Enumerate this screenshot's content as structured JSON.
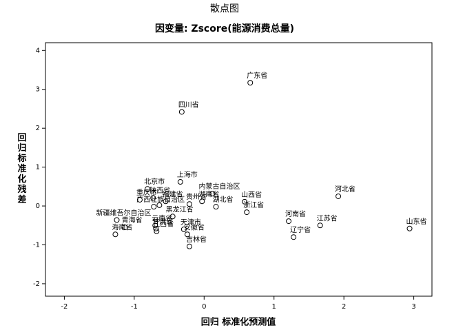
{
  "chart_data": {
    "type": "scatter",
    "title": "散点图",
    "subtitle": "因变量: Zscore(能源消费总量)",
    "x_label": "回归 标准化预测值",
    "y_label": "回归标准化残差",
    "x": [
      0.66,
      -0.32,
      -0.34,
      0.12,
      -0.81,
      -0.73,
      -0.92,
      -0.55,
      -0.03,
      0.58,
      1.92,
      -0.72,
      -0.64,
      0.17,
      0.61,
      -0.45,
      -0.7,
      -0.69,
      -0.68,
      -0.21,
      -0.29,
      -0.24,
      -0.21,
      -1.25,
      -1.13,
      -1.27,
      1.21,
      1.66,
      1.28,
      2.94
    ],
    "values": [
      3.17,
      2.42,
      0.62,
      0.32,
      0.44,
      0.21,
      0.16,
      0.12,
      0.12,
      0.11,
      0.25,
      -0.02,
      0.02,
      -0.02,
      -0.16,
      -0.27,
      -0.5,
      -0.58,
      -0.65,
      0.05,
      -0.6,
      -0.73,
      -1.04,
      -0.36,
      -0.55,
      -0.73,
      -0.39,
      -0.5,
      -0.8,
      -0.58
    ],
    "point_labels": [
      "广东省",
      "四川省",
      "上海市",
      "内蒙古自治区",
      "北京市",
      "陕西省",
      "重庆市",
      "福建省",
      "湖南省",
      "山西省",
      "河北省",
      "广西壮族自治区",
      null,
      "湖北省",
      "浙江省",
      "黑龙江省",
      "云南省",
      "甘肃省",
      "江西省",
      "贵州省",
      "天津市",
      "安徽省",
      "吉林省",
      "新疆维吾尔自治区",
      "青海省",
      "海南省",
      "河南省",
      "江苏省",
      "辽宁省",
      "山东省"
    ],
    "xlim": [
      -2.27,
      3.26
    ],
    "ylim": [
      -2.32,
      4.2
    ],
    "xticks": [
      -2,
      -1,
      0,
      1,
      2,
      3
    ],
    "yticks": [
      -2,
      -1,
      0,
      1,
      2,
      3,
      4
    ],
    "marker_color": "#000000"
  }
}
